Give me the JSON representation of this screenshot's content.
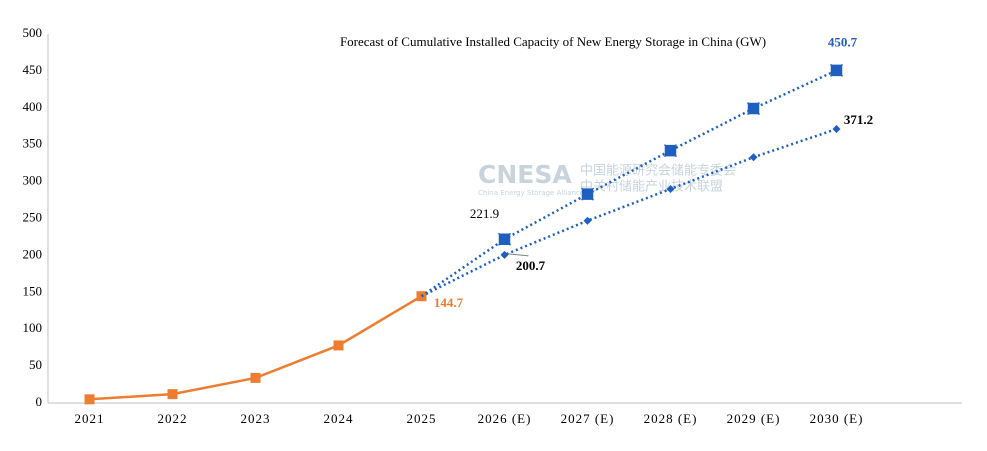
{
  "chart_data": {
    "type": "line",
    "title": "Forecast of Cumulative Installed Capacity of New Energy Storage in China (GW)",
    "watermark": {
      "logo": "CNESA",
      "line1": "中国能源研究会储能专委会",
      "line2": "中关村储能产业技术联盟",
      "line3": "China Energy Storage Alliance"
    },
    "categories": [
      "2021",
      "2022",
      "2023",
      "2024",
      "2025",
      "2026 (E)",
      "2027 (E)",
      "2028 (E)",
      "2029 (E)",
      "2030 (E)"
    ],
    "series": [
      {
        "color": "#ed7d31",
        "style": "solid",
        "marker": "square",
        "values": [
          5,
          12,
          34,
          78,
          144.7,
          null,
          null,
          null,
          null,
          null
        ],
        "value_labels": [
          null,
          null,
          null,
          null,
          "144.7",
          null,
          null,
          null,
          null,
          null
        ]
      },
      {
        "color": "#1f5fbf",
        "style": "dotted",
        "marker": "cross",
        "values": [
          null,
          null,
          null,
          null,
          144.7,
          221.9,
          283,
          342,
          399,
          450.7
        ],
        "value_labels": [
          null,
          null,
          null,
          null,
          null,
          "221.9",
          null,
          null,
          null,
          "450.7"
        ]
      },
      {
        "color": "#1f5fbf",
        "style": "dotted",
        "marker": "diamond",
        "values": [
          null,
          null,
          null,
          null,
          144.7,
          200.7,
          247,
          290,
          333,
          371.2
        ],
        "value_labels": [
          null,
          null,
          null,
          null,
          null,
          "200.7",
          null,
          null,
          null,
          "371.2"
        ]
      }
    ],
    "ylim": [
      0,
      500
    ],
    "yticks": [
      0,
      50,
      100,
      150,
      200,
      250,
      300,
      350,
      400,
      450,
      500
    ],
    "grid": false
  }
}
